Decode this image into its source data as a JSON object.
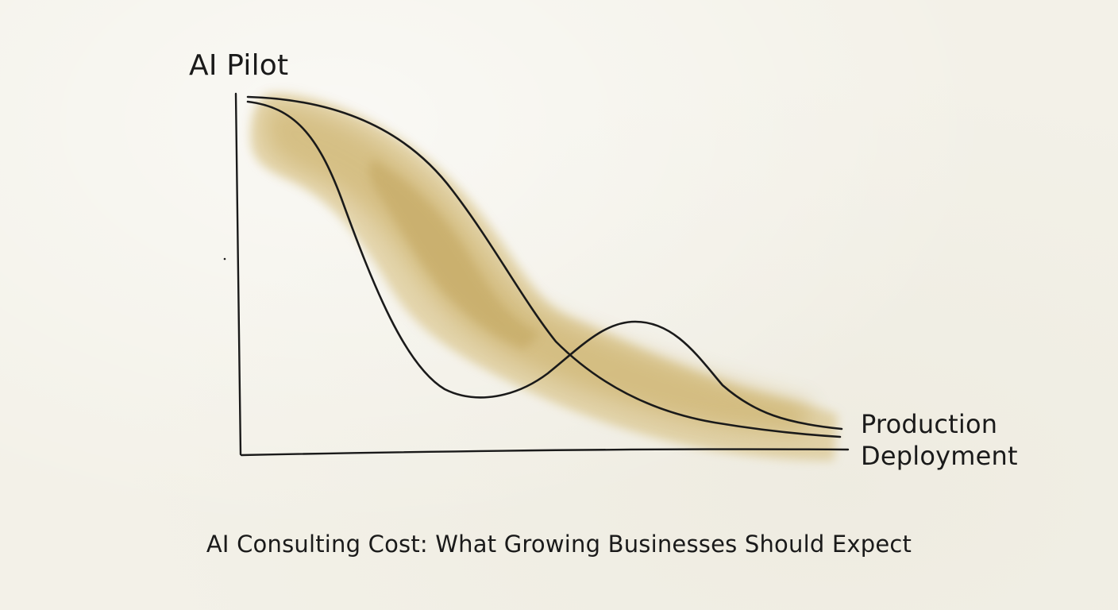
{
  "diagram": {
    "top_label": "AI Pilot",
    "end_label_line1": "Production",
    "end_label_line2": "Deployment",
    "caption": "AI Consulting Cost: What Growing Businesses Should Expect",
    "colors": {
      "ink": "#1a1a1a",
      "wash": "#c9ad5c",
      "paper": "#f3f1e8"
    }
  }
}
